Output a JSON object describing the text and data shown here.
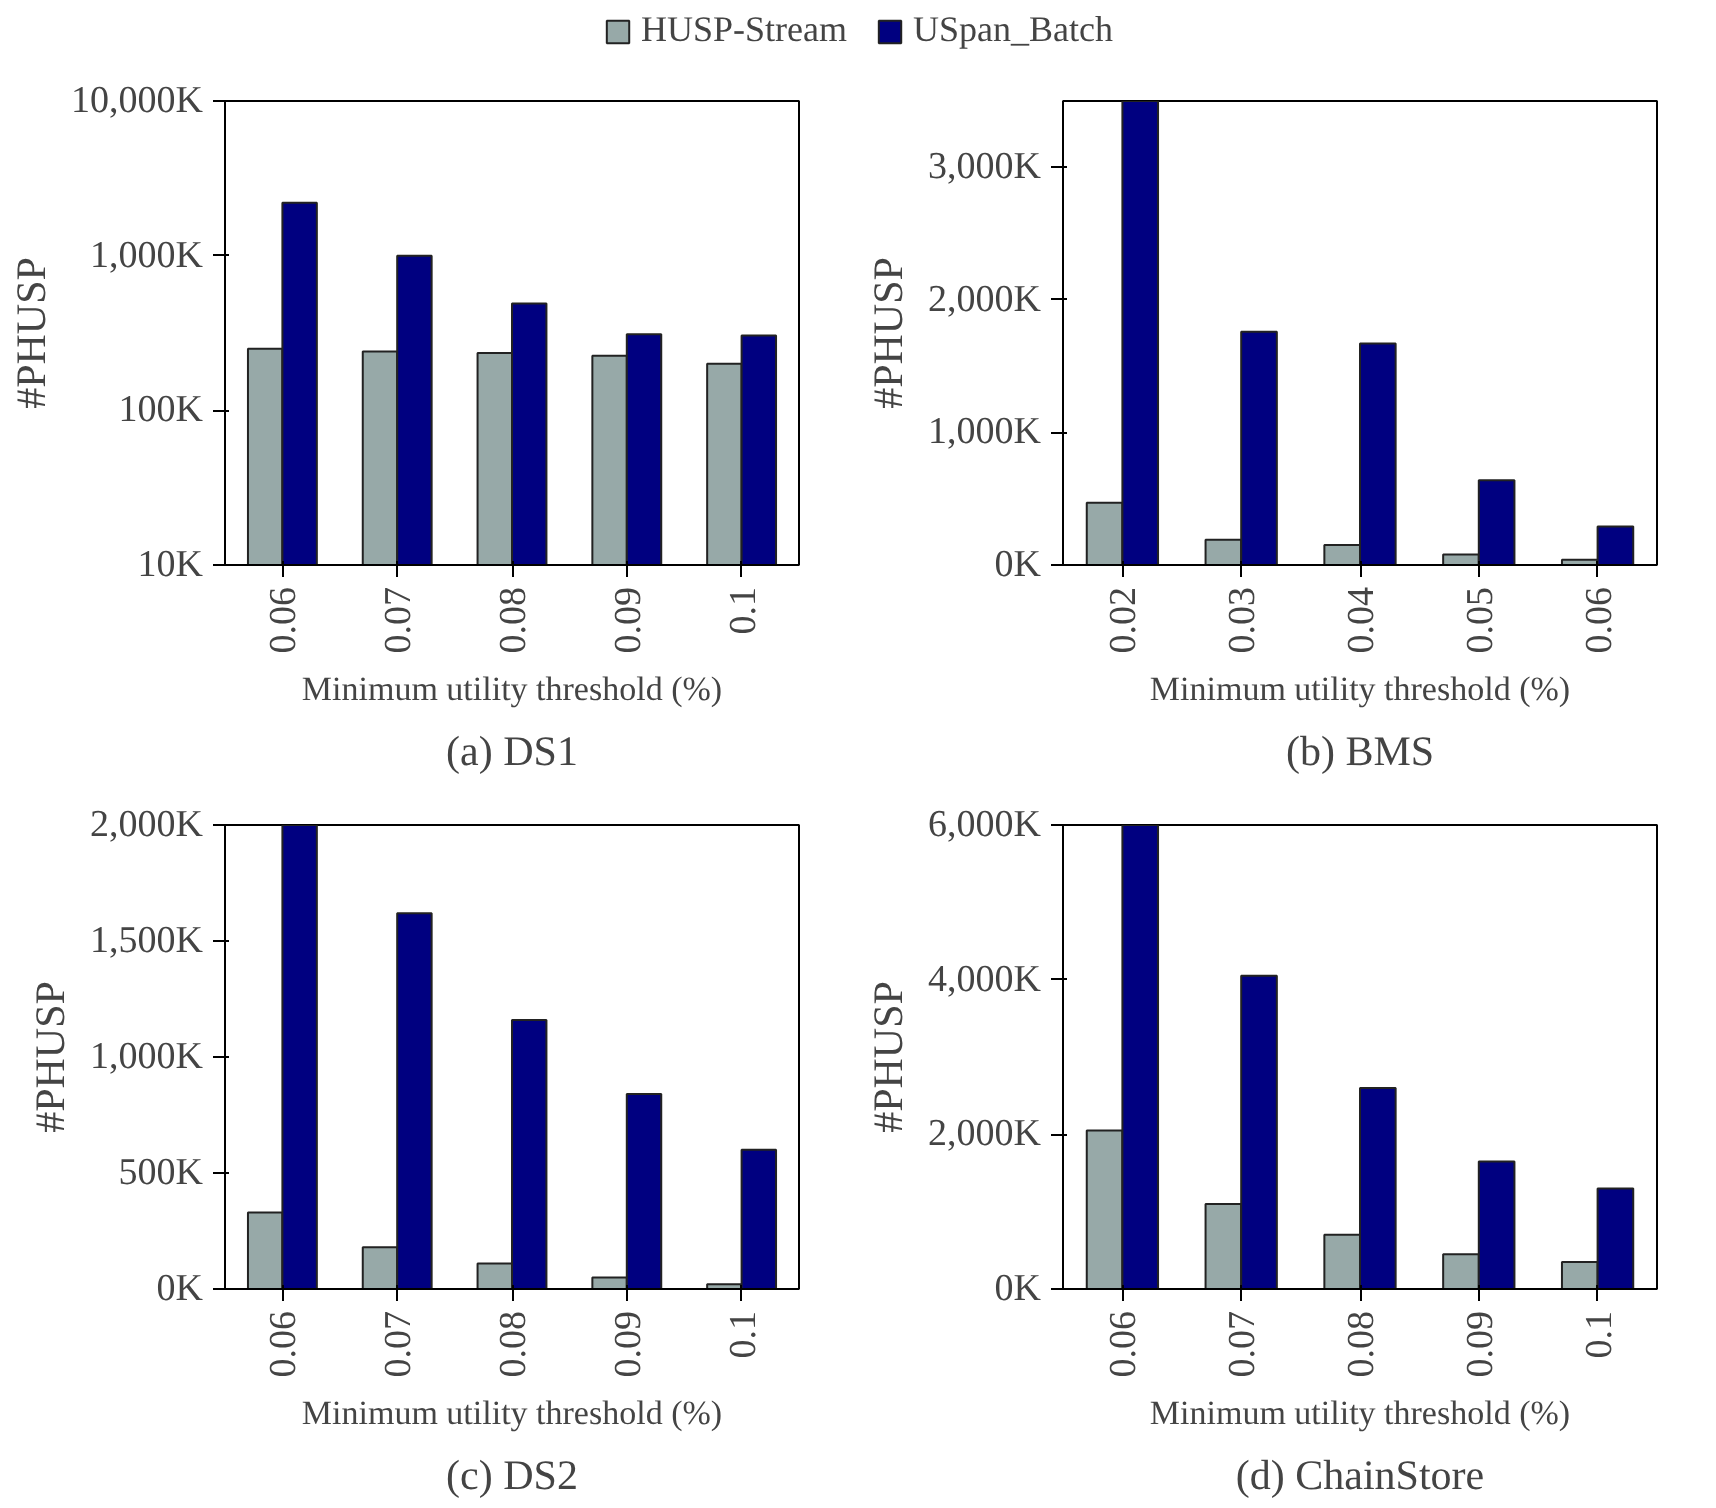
{
  "chart_data": [
    {
      "type": "bar",
      "title": "(a) DS1",
      "xlabel": "Minimum utility threshold (%)",
      "ylabel": "#PHUSP",
      "categories": [
        "0.06",
        "0.07",
        "0.08",
        "0.09",
        "0.1"
      ],
      "log": "y",
      "ylim": [
        10,
        10000
      ],
      "yticks": [
        {
          "value": 10,
          "label": "10K"
        },
        {
          "value": 100,
          "label": "100K"
        },
        {
          "value": 1000,
          "label": "1,000K"
        },
        {
          "value": 10000,
          "label": "10,000K"
        }
      ],
      "grid": false,
      "legend": "top",
      "series": [
        {
          "name": "HUSP-Stream",
          "color": "#97a9a8",
          "values": [
            250,
            240,
            235,
            225,
            200
          ]
        },
        {
          "name": "USpan_Batch",
          "color": "#000080",
          "values": [
            2200,
            1000,
            490,
            310,
            305
          ]
        }
      ]
    },
    {
      "type": "bar",
      "title": "(b) BMS",
      "xlabel": "Minimum utility threshold (%)",
      "ylabel": "#PHUSP",
      "categories": [
        "0.02",
        "0.03",
        "0.04",
        "0.05",
        "0.06"
      ],
      "ylim": [
        0,
        3500
      ],
      "yticks": [
        {
          "value": 0,
          "label": "0K"
        },
        {
          "value": 1000,
          "label": "1,000K"
        },
        {
          "value": 2000,
          "label": "2,000K"
        },
        {
          "value": 3000,
          "label": "3,000K"
        }
      ],
      "grid": false,
      "series": [
        {
          "color": "#97a9a8",
          "values": [
            470,
            190,
            150,
            80,
            40
          ]
        },
        {
          "color": "#000080",
          "values": [
            3500,
            1760,
            1670,
            640,
            290
          ]
        }
      ]
    },
    {
      "type": "bar",
      "title": "(c) DS2",
      "xlabel": "Minimum utility threshold (%)",
      "ylabel": "#PHUSP",
      "categories": [
        "0.06",
        "0.07",
        "0.08",
        "0.09",
        "0.1"
      ],
      "ylim": [
        0,
        2000
      ],
      "yticks": [
        {
          "value": 0,
          "label": "0K"
        },
        {
          "value": 500,
          "label": "500K"
        },
        {
          "value": 1000,
          "label": "1,000K"
        },
        {
          "value": 1500,
          "label": "1,500K"
        },
        {
          "value": 2000,
          "label": "2,000K"
        }
      ],
      "grid": false,
      "series": [
        {
          "color": "#97a9a8",
          "values": [
            330,
            180,
            110,
            50,
            20
          ]
        },
        {
          "color": "#000080",
          "values": [
            2000,
            1620,
            1160,
            840,
            600
          ]
        }
      ]
    },
    {
      "type": "bar",
      "title": "(d) ChainStore",
      "xlabel": "Minimum utility threshold (%)",
      "ylabel": "#PHUSP",
      "categories": [
        "0.06",
        "0.07",
        "0.08",
        "0.09",
        "0.1"
      ],
      "ylim": [
        0,
        6000
      ],
      "yticks": [
        {
          "value": 0,
          "label": "0K"
        },
        {
          "value": 2000,
          "label": "2,000K"
        },
        {
          "value": 4000,
          "label": "4,000K"
        },
        {
          "value": 6000,
          "label": "6,000K"
        }
      ],
      "grid": false,
      "series": [
        {
          "color": "#97a9a8",
          "values": [
            2050,
            1100,
            700,
            450,
            350
          ]
        },
        {
          "color": "#000080",
          "values": [
            6000,
            4050,
            2600,
            1650,
            1300
          ]
        }
      ]
    }
  ]
}
